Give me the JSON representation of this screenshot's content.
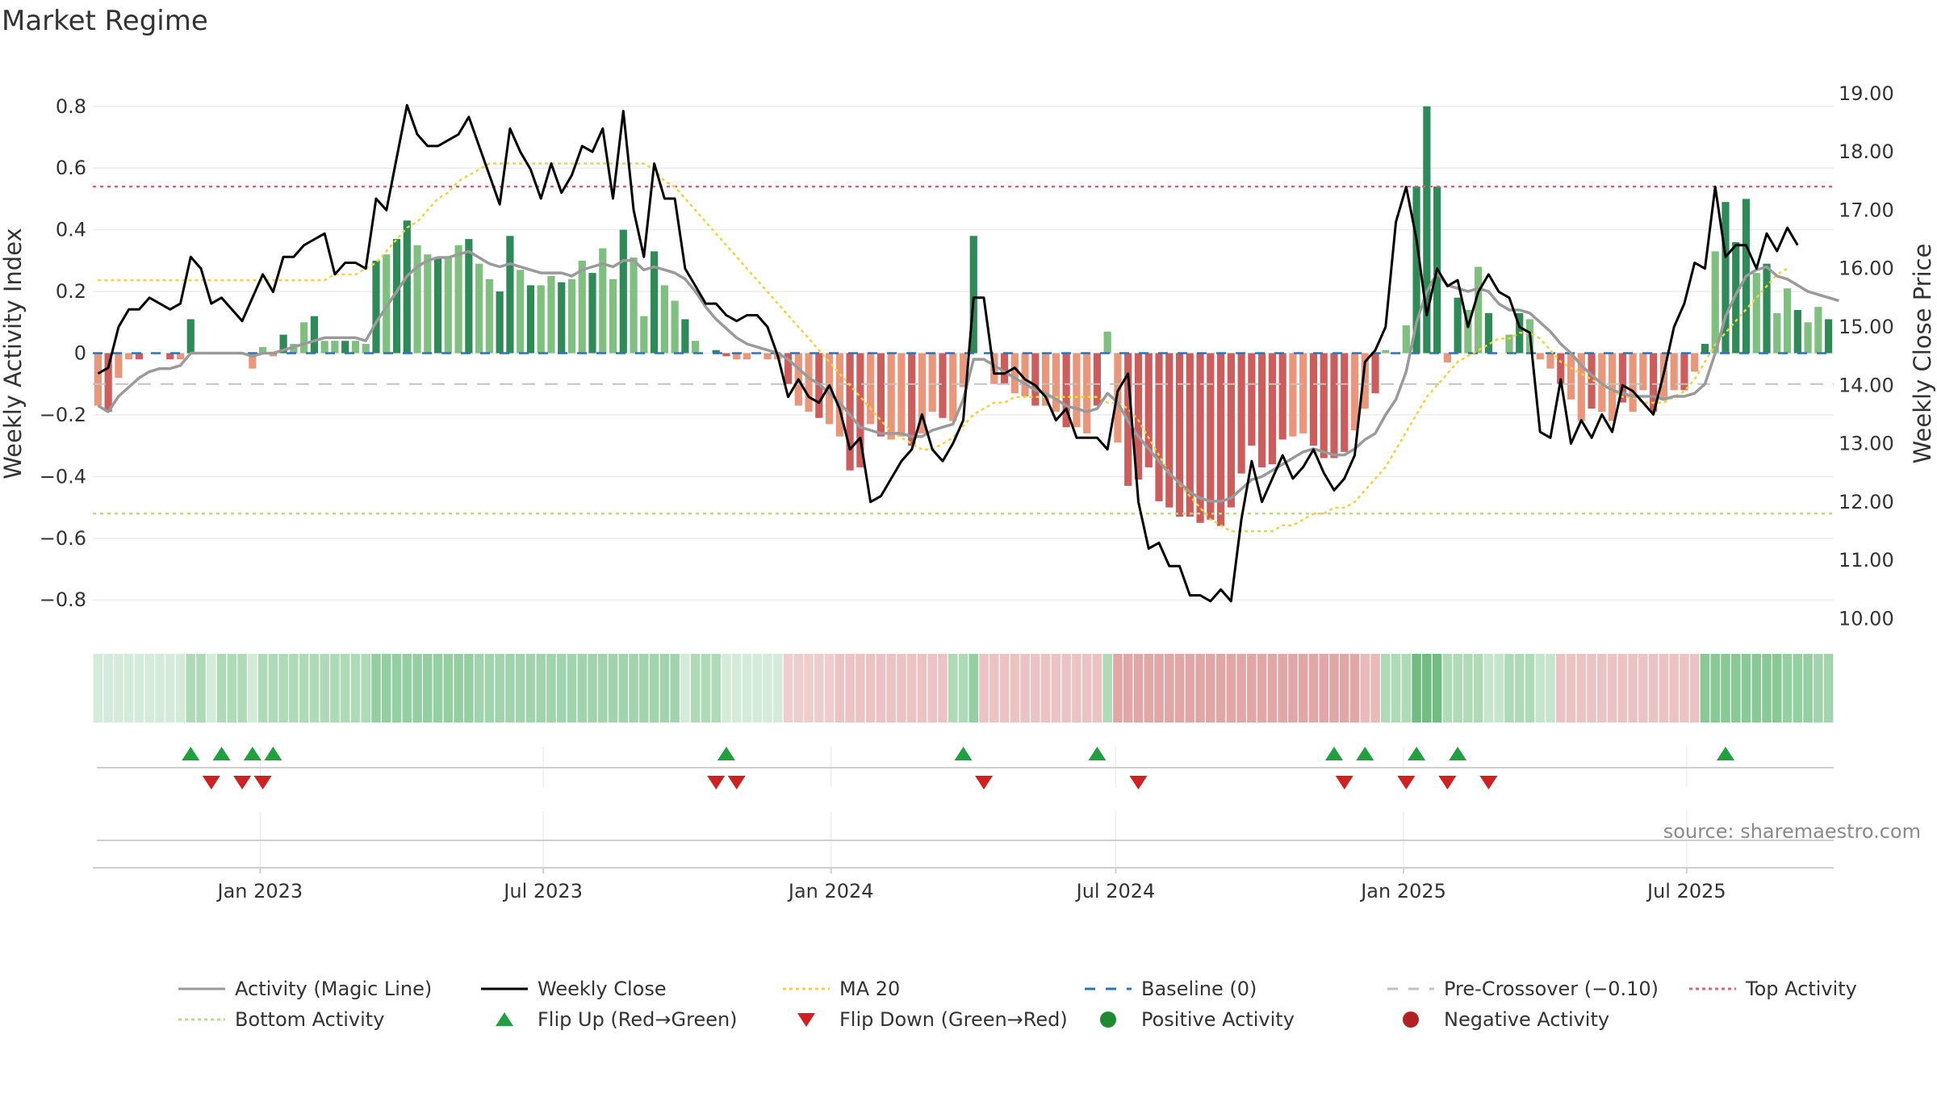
{
  "title": "Market Regime",
  "source": "source: sharemaestro.com",
  "colors": {
    "activity_line": "#9a9a9a",
    "close_line": "#000000",
    "ma20": "#f2d33a",
    "baseline": "#2d74b3",
    "pre_crossover": "#c2c2c2",
    "top_activity": "#e0607a",
    "bottom_activity": "#b8e07a",
    "pos_dark": "#2e8b57",
    "pos_light": "#7fbf7f",
    "neg_dark": "#cd5c5c",
    "neg_light": "#e9967a",
    "flip_up": "#20a040",
    "flip_down": "#d02020",
    "pos_dot": "#1e8b2e",
    "neg_dot": "#b22222"
  },
  "chart_data": {
    "type": "bar",
    "title": "Market Regime",
    "ylabel": "Weekly Activity Index",
    "y2label": "Weekly Close Price",
    "ylim": [
      -0.87,
      0.87
    ],
    "y2lim": [
      9.95,
      19.15
    ],
    "yticks": [
      "0.8",
      "0.6",
      "0.4",
      "0.2",
      "0",
      "−0.2",
      "−0.4",
      "−0.6",
      "−0.8"
    ],
    "ytick_values": [
      0.8,
      0.6,
      0.4,
      0.2,
      0,
      -0.2,
      -0.4,
      -0.6,
      -0.8
    ],
    "y2ticks": [
      "19.00",
      "18.00",
      "17.00",
      "16.00",
      "15.00",
      "14.00",
      "13.00",
      "12.00",
      "11.00",
      "10.00"
    ],
    "y2tick_values": [
      19,
      18,
      17,
      16,
      15,
      14,
      13,
      12,
      11,
      10
    ],
    "x_start": "2022-09-16",
    "x_end": "2025-10-03",
    "xticks": [
      {
        "date": "2023-01-01",
        "label": "Jan 2023"
      },
      {
        "date": "2023-07-01",
        "label": "Jul 2023"
      },
      {
        "date": "2024-01-01",
        "label": "Jan 2024"
      },
      {
        "date": "2024-07-01",
        "label": "Jul 2024"
      },
      {
        "date": "2025-01-01",
        "label": "Jan 2025"
      },
      {
        "date": "2025-07-01",
        "label": "Jul 2025"
      }
    ],
    "reference_lines": {
      "baseline": 0,
      "pre_crossover": -0.1,
      "top_activity": 0.54,
      "bottom_activity": -0.52
    },
    "weekly_activity": [
      -0.17,
      -0.19,
      -0.08,
      -0.02,
      -0.02,
      0.0,
      0.0,
      -0.02,
      -0.02,
      0.11,
      0.0,
      0.0,
      0.0,
      0.0,
      0.0,
      -0.05,
      0.02,
      -0.01,
      0.06,
      0.03,
      0.1,
      0.12,
      0.04,
      0.04,
      0.04,
      0.04,
      0.03,
      0.3,
      0.32,
      0.37,
      0.43,
      0.35,
      0.32,
      0.31,
      0.31,
      0.35,
      0.37,
      0.29,
      0.24,
      0.2,
      0.38,
      0.27,
      0.22,
      0.22,
      0.25,
      0.23,
      0.24,
      0.3,
      0.26,
      0.34,
      0.24,
      0.4,
      0.31,
      0.12,
      0.33,
      0.22,
      0.17,
      0.11,
      0.04,
      0.0,
      0.01,
      -0.01,
      -0.02,
      -0.02,
      0.0,
      -0.02,
      -0.02,
      -0.1,
      -0.17,
      -0.19,
      -0.21,
      -0.23,
      -0.27,
      -0.38,
      -0.37,
      -0.23,
      -0.27,
      -0.28,
      -0.27,
      -0.3,
      -0.26,
      -0.19,
      -0.21,
      -0.22,
      -0.11,
      0.38,
      0.0,
      -0.1,
      -0.1,
      -0.13,
      -0.14,
      -0.17,
      -0.17,
      -0.19,
      -0.24,
      -0.24,
      -0.26,
      -0.17,
      0.07,
      -0.29,
      -0.43,
      -0.41,
      -0.37,
      -0.48,
      -0.5,
      -0.53,
      -0.53,
      -0.55,
      -0.54,
      -0.56,
      -0.5,
      -0.39,
      -0.3,
      -0.37,
      -0.36,
      -0.28,
      -0.27,
      -0.26,
      -0.3,
      -0.34,
      -0.34,
      -0.32,
      -0.25,
      -0.18,
      -0.13,
      0.01,
      0.0,
      0.09,
      0.54,
      0.8,
      0.54,
      -0.03,
      0.18,
      0.14,
      0.28,
      0.13,
      0.0,
      0.06,
      0.13,
      0.11,
      -0.02,
      -0.05,
      -0.1,
      -0.15,
      -0.22,
      -0.18,
      -0.19,
      -0.22,
      -0.16,
      -0.19,
      -0.12,
      -0.19,
      -0.15,
      -0.12,
      -0.12,
      -0.06,
      0.03,
      0.33,
      0.49,
      0.36,
      0.5,
      0.26,
      0.29,
      0.13,
      0.21,
      0.14,
      0.1,
      0.15,
      0.11
    ],
    "activity_line": [
      -0.17,
      -0.19,
      -0.14,
      -0.11,
      -0.08,
      -0.06,
      -0.05,
      -0.05,
      -0.04,
      0.0,
      0.0,
      0.0,
      0.0,
      0.0,
      0.0,
      -0.01,
      0.0,
      0.0,
      0.01,
      0.02,
      0.03,
      0.04,
      0.05,
      0.05,
      0.05,
      0.05,
      0.04,
      0.1,
      0.15,
      0.2,
      0.25,
      0.28,
      0.3,
      0.31,
      0.31,
      0.32,
      0.33,
      0.31,
      0.29,
      0.28,
      0.29,
      0.28,
      0.27,
      0.26,
      0.26,
      0.26,
      0.25,
      0.27,
      0.28,
      0.29,
      0.28,
      0.3,
      0.3,
      0.27,
      0.28,
      0.27,
      0.26,
      0.24,
      0.2,
      0.15,
      0.11,
      0.08,
      0.05,
      0.03,
      0.02,
      0.01,
      0.0,
      -0.02,
      -0.05,
      -0.08,
      -0.1,
      -0.13,
      -0.16,
      -0.2,
      -0.24,
      -0.25,
      -0.26,
      -0.26,
      -0.26,
      -0.27,
      -0.27,
      -0.25,
      -0.24,
      -0.23,
      -0.15,
      -0.02,
      -0.02,
      -0.04,
      -0.06,
      -0.08,
      -0.1,
      -0.12,
      -0.13,
      -0.15,
      -0.17,
      -0.18,
      -0.19,
      -0.18,
      -0.13,
      -0.16,
      -0.22,
      -0.27,
      -0.31,
      -0.35,
      -0.39,
      -0.42,
      -0.45,
      -0.47,
      -0.48,
      -0.48,
      -0.47,
      -0.44,
      -0.41,
      -0.4,
      -0.38,
      -0.36,
      -0.34,
      -0.32,
      -0.31,
      -0.32,
      -0.33,
      -0.33,
      -0.31,
      -0.28,
      -0.26,
      -0.2,
      -0.15,
      -0.06,
      0.1,
      0.2,
      0.26,
      0.22,
      0.21,
      0.2,
      0.21,
      0.2,
      0.16,
      0.14,
      0.14,
      0.13,
      0.1,
      0.07,
      0.03,
      0.0,
      -0.04,
      -0.07,
      -0.1,
      -0.12,
      -0.13,
      -0.14,
      -0.14,
      -0.14,
      -0.15,
      -0.14,
      -0.14,
      -0.13,
      -0.1,
      0.0,
      0.12,
      0.19,
      0.25,
      0.27,
      0.28,
      0.25,
      0.24,
      0.22,
      0.2,
      0.19,
      0.18,
      0.17
    ],
    "weekly_close": [
      14.2,
      14.3,
      15.0,
      15.3,
      15.3,
      15.5,
      15.4,
      15.3,
      15.4,
      16.2,
      16.0,
      15.4,
      15.5,
      15.3,
      15.1,
      15.5,
      15.9,
      15.6,
      16.2,
      16.2,
      16.4,
      16.5,
      16.6,
      15.9,
      16.1,
      16.1,
      16.0,
      17.2,
      17.0,
      17.9,
      18.8,
      18.3,
      18.1,
      18.1,
      18.2,
      18.3,
      18.6,
      18.1,
      17.6,
      17.1,
      18.4,
      18.0,
      17.7,
      17.2,
      17.8,
      17.3,
      17.6,
      18.1,
      18.0,
      18.4,
      17.2,
      18.7,
      17.0,
      16.2,
      17.8,
      17.2,
      17.2,
      16.0,
      15.7,
      15.4,
      15.4,
      15.2,
      15.1,
      15.2,
      15.2,
      15.0,
      14.5,
      13.8,
      14.1,
      13.8,
      13.7,
      14.0,
      13.6,
      12.9,
      13.1,
      12.0,
      12.1,
      12.4,
      12.7,
      12.9,
      13.5,
      12.9,
      12.7,
      13.0,
      13.4,
      15.5,
      15.5,
      14.2,
      14.2,
      14.3,
      14.1,
      14.0,
      13.8,
      13.4,
      13.6,
      13.1,
      13.1,
      13.1,
      12.9,
      13.9,
      14.2,
      12.0,
      11.2,
      11.3,
      10.9,
      10.9,
      10.4,
      10.4,
      10.3,
      10.5,
      10.3,
      11.7,
      12.7,
      12.0,
      12.4,
      12.8,
      12.4,
      12.6,
      12.9,
      12.5,
      12.2,
      12.4,
      12.8,
      14.4,
      14.6,
      15.0,
      16.8,
      17.4,
      16.5,
      15.2,
      16.0,
      15.7,
      15.8,
      15.0,
      15.6,
      15.9,
      15.6,
      15.5,
      15.0,
      14.9,
      13.2,
      13.1,
      14.1,
      13.0,
      13.4,
      13.1,
      13.5,
      13.2,
      14.0,
      13.9,
      13.7,
      13.5,
      14.2,
      15.0,
      15.4,
      16.1,
      16.0,
      17.4,
      16.2,
      16.4,
      16.4,
      16.0,
      16.6,
      16.3,
      16.7,
      16.4
    ],
    "ma20": [
      15.8,
      15.8,
      15.8,
      15.8,
      15.8,
      15.8,
      15.8,
      15.8,
      15.8,
      15.8,
      15.8,
      15.8,
      15.8,
      15.8,
      15.8,
      15.8,
      15.8,
      15.8,
      15.8,
      15.8,
      15.8,
      15.8,
      15.8,
      15.9,
      15.9,
      15.9,
      16.0,
      16.1,
      16.3,
      16.5,
      16.7,
      16.8,
      17.0,
      17.2,
      17.3,
      17.5,
      17.6,
      17.7,
      17.8,
      17.8,
      17.8,
      17.8,
      17.8,
      17.8,
      17.8,
      17.8,
      17.8,
      17.8,
      17.8,
      17.8,
      17.8,
      17.8,
      17.8,
      17.8,
      17.7,
      17.5,
      17.4,
      17.2,
      17.0,
      16.8,
      16.6,
      16.4,
      16.2,
      16.0,
      15.8,
      15.6,
      15.4,
      15.2,
      15.0,
      14.8,
      14.6,
      14.4,
      14.2,
      14.0,
      13.8,
      13.6,
      13.4,
      13.2,
      13.1,
      13.0,
      12.9,
      12.9,
      13.0,
      13.1,
      13.3,
      13.5,
      13.6,
      13.7,
      13.7,
      13.8,
      13.8,
      13.8,
      13.8,
      13.8,
      13.8,
      13.8,
      13.8,
      13.8,
      13.7,
      13.7,
      13.6,
      13.4,
      13.1,
      12.8,
      12.5,
      12.3,
      12.1,
      11.9,
      11.7,
      11.6,
      11.5,
      11.5,
      11.5,
      11.5,
      11.5,
      11.6,
      11.6,
      11.7,
      11.8,
      11.8,
      11.9,
      11.9,
      12.0,
      12.2,
      12.4,
      12.6,
      12.9,
      13.2,
      13.5,
      13.8,
      14.0,
      14.2,
      14.4,
      14.5,
      14.6,
      14.7,
      14.8,
      14.8,
      14.9,
      14.9,
      14.8,
      14.6,
      14.4,
      14.3,
      14.2,
      14.1,
      14.0,
      13.9,
      13.8,
      13.8,
      13.7,
      13.7,
      13.7,
      13.8,
      13.9,
      14.1,
      14.4,
      14.7,
      14.9,
      15.1,
      15.3,
      15.5,
      15.7,
      15.9,
      16.0
    ],
    "regime_strip": [
      0.1,
      0.1,
      0.1,
      0.1,
      0.1,
      0.1,
      0.1,
      0.1,
      0.1,
      0.4,
      0.4,
      0.1,
      0.4,
      0.4,
      0.4,
      0.1,
      0.4,
      0.4,
      0.4,
      0.4,
      0.4,
      0.4,
      0.4,
      0.4,
      0.4,
      0.4,
      0.4,
      0.6,
      0.6,
      0.6,
      0.6,
      0.6,
      0.6,
      0.6,
      0.6,
      0.6,
      0.6,
      0.5,
      0.5,
      0.5,
      0.5,
      0.5,
      0.5,
      0.5,
      0.5,
      0.5,
      0.5,
      0.5,
      0.5,
      0.5,
      0.5,
      0.5,
      0.5,
      0.5,
      0.5,
      0.5,
      0.5,
      0.1,
      0.4,
      0.4,
      0.4,
      0.1,
      0.1,
      0.1,
      0.1,
      0.1,
      0.1,
      -0.3,
      -0.3,
      -0.3,
      -0.3,
      -0.3,
      -0.4,
      -0.4,
      -0.4,
      -0.4,
      -0.4,
      -0.4,
      -0.4,
      -0.4,
      -0.4,
      -0.4,
      -0.4,
      0.4,
      0.4,
      0.6,
      -0.4,
      -0.4,
      -0.4,
      -0.4,
      -0.4,
      -0.4,
      -0.4,
      -0.4,
      -0.4,
      -0.4,
      -0.4,
      -0.4,
      0.4,
      -0.7,
      -0.7,
      -0.7,
      -0.7,
      -0.7,
      -0.7,
      -0.7,
      -0.7,
      -0.7,
      -0.7,
      -0.7,
      -0.7,
      -0.7,
      -0.7,
      -0.7,
      -0.7,
      -0.7,
      -0.7,
      -0.7,
      -0.7,
      -0.7,
      -0.7,
      -0.7,
      -0.7,
      -0.5,
      -0.5,
      0.4,
      0.4,
      0.4,
      0.9,
      0.9,
      0.9,
      0.4,
      0.4,
      0.4,
      0.4,
      0.2,
      0.2,
      0.4,
      0.4,
      0.4,
      0.2,
      0.2,
      -0.4,
      -0.4,
      -0.4,
      -0.4,
      -0.4,
      -0.4,
      -0.4,
      -0.4,
      -0.4,
      -0.4,
      -0.4,
      -0.4,
      -0.4,
      -0.4,
      0.7,
      0.7,
      0.7,
      0.7,
      0.7,
      0.7,
      0.7,
      0.7,
      0.6,
      0.6,
      0.6,
      0.5,
      0.5
    ],
    "flip_up_weeks": [
      9,
      12,
      15,
      17,
      61,
      84,
      97,
      120,
      123,
      128,
      132,
      158
    ],
    "flip_down_weeks": [
      11,
      14,
      16,
      60,
      62,
      86,
      101,
      121,
      127,
      131,
      135
    ],
    "legend": [
      {
        "label": "Activity (Magic Line)",
        "marker": "solid-line",
        "color": "#9a9a9a"
      },
      {
        "label": "Weekly Close",
        "marker": "solid-line",
        "color": "#000000"
      },
      {
        "label": "MA 20",
        "marker": "dotted-line",
        "color": "#f2d33a"
      },
      {
        "label": "Baseline (0)",
        "marker": "dashed-line",
        "color": "#2d74b3"
      },
      {
        "label": "Pre-Crossover (−0.10)",
        "marker": "dashed-line",
        "color": "#c2c2c2"
      },
      {
        "label": "Top Activity",
        "marker": "dotted-line",
        "color": "#e0607a"
      },
      {
        "label": "Bottom Activity",
        "marker": "dotted-line",
        "color": "#b8e07a"
      },
      {
        "label": "Flip Up (Red→Green)",
        "marker": "triangle-up",
        "color": "#20a040"
      },
      {
        "label": "Flip Down (Green→Red)",
        "marker": "triangle-down",
        "color": "#d02020"
      },
      {
        "label": "Positive Activity",
        "marker": "dot",
        "color": "#1e8b2e"
      },
      {
        "label": "Negative Activity",
        "marker": "dot",
        "color": "#b22222"
      }
    ]
  }
}
